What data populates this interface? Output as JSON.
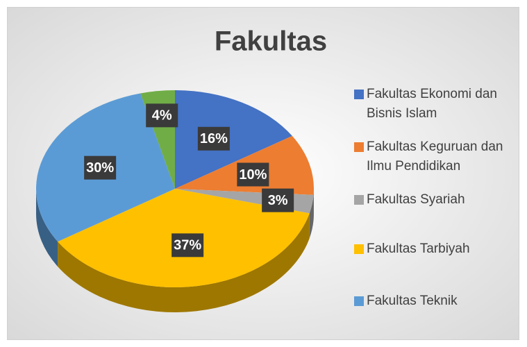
{
  "chart_data": {
    "type": "pie",
    "title": "Fakultas",
    "categories": [
      "Fakultas Ekonomi dan Bisnis Islam",
      "Fakultas Keguruan dan Ilmu Pendidikan",
      "Fakultas Syariah",
      "Fakultas Tarbiyah",
      "Fakultas Teknik",
      null
    ],
    "values": [
      16,
      10,
      3,
      37,
      30,
      4
    ],
    "value_labels": [
      "16%",
      "10%",
      "3%",
      "37%",
      "30%",
      "4%"
    ],
    "colors": [
      "#4472c4",
      "#ed7d31",
      "#a5a5a5",
      "#ffc000",
      "#5b9bd5",
      "#70ad47"
    ],
    "legend": "right"
  }
}
